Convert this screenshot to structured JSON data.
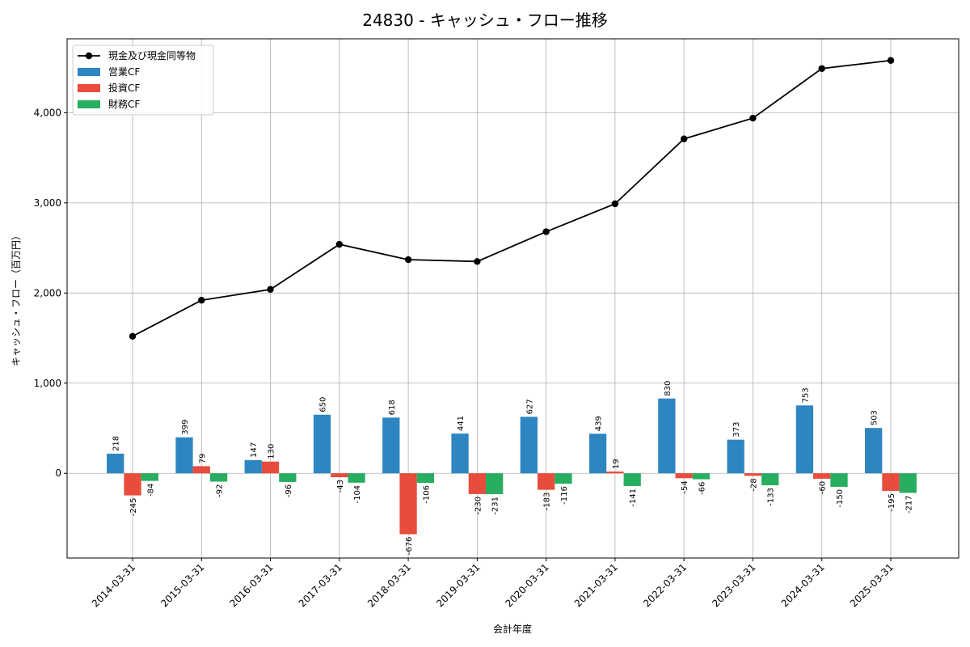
{
  "chart_data": {
    "type": "bar",
    "title": "24830 - キャッシュ・フロー推移",
    "xlabel": "会計年度",
    "ylabel": "キャッシュ・フロー（百万円）",
    "categories": [
      "2014-03-31",
      "2015-03-31",
      "2016-03-31",
      "2017-03-31",
      "2018-03-31",
      "2019-03-31",
      "2020-03-31",
      "2021-03-31",
      "2022-03-31",
      "2023-03-31",
      "2024-03-31",
      "2025-03-31"
    ],
    "ylim": [
      -940,
      4820
    ],
    "yticks": [
      0,
      1000,
      2000,
      3000,
      4000
    ],
    "ytick_labels": [
      "0",
      "1,000",
      "2,000",
      "3,000",
      "4,000"
    ],
    "grid": true,
    "legend_position": "top-left",
    "series": [
      {
        "name": "営業CF",
        "kind": "bar",
        "color": "#2e86c1",
        "values": [
          218,
          399,
          147,
          650,
          618,
          441,
          627,
          439,
          830,
          373,
          753,
          503
        ],
        "labels": [
          "218",
          "399",
          "147",
          "650",
          "618",
          "441",
          "627",
          "439",
          "830",
          "373",
          "753",
          "503"
        ]
      },
      {
        "name": "投資CF",
        "kind": "bar",
        "color": "#e74c3c",
        "values": [
          -245,
          79,
          130,
          -43,
          -676,
          -230,
          -183,
          19,
          -54,
          -28,
          -60,
          -195
        ],
        "labels": [
          "-245",
          "79",
          "130",
          "-43",
          "-676",
          "-230",
          "-183",
          "19",
          "-54",
          "-28",
          "-60",
          "-195"
        ]
      },
      {
        "name": "財務CF",
        "kind": "bar",
        "color": "#27ae60",
        "values": [
          -84,
          -92,
          -96,
          -104,
          -106,
          -231,
          -116,
          -141,
          -66,
          -133,
          -150,
          -217
        ],
        "labels": [
          "-84",
          "-92",
          "-96",
          "-104",
          "-106",
          "-231",
          "-116",
          "-141",
          "-66",
          "-133",
          "-150",
          "-217"
        ]
      },
      {
        "name": "現金及び現金同等物",
        "kind": "line",
        "color": "#000000",
        "values": [
          1520,
          1920,
          2040,
          2540,
          2370,
          2350,
          2680,
          2990,
          3710,
          3940,
          4490,
          4580
        ]
      }
    ]
  }
}
